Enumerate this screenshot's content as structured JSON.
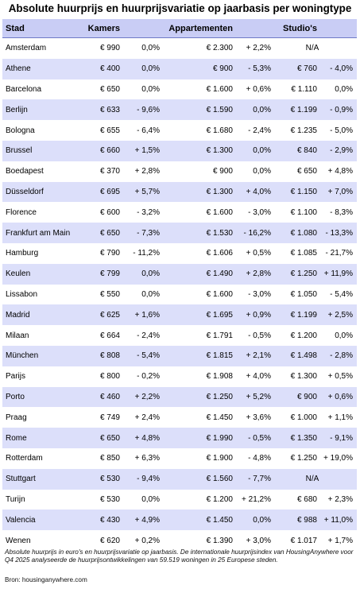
{
  "chart_data": {
    "type": "table",
    "title": "Absolute huurprijs en huurprijsvariatie op jaarbasis per woningtype",
    "columns": [
      "Stad",
      "Kamers",
      "Appartementen",
      "Studio's"
    ],
    "rows": [
      {
        "city": "Amsterdam",
        "kamers_prijs": "€ 990",
        "kamers_var": "0,0%",
        "app_prijs": "€ 2.300",
        "app_var": "+ 2,2%",
        "studio_prijs": "N/A",
        "studio_var": ""
      },
      {
        "city": "Athene",
        "kamers_prijs": "€ 400",
        "kamers_var": "0,0%",
        "app_prijs": "€ 900",
        "app_var": "- 5,3%",
        "studio_prijs": "€ 760",
        "studio_var": "- 4,0%"
      },
      {
        "city": "Barcelona",
        "kamers_prijs": "€ 650",
        "kamers_var": "0,0%",
        "app_prijs": "€ 1.600",
        "app_var": "+ 0,6%",
        "studio_prijs": "€ 1.110",
        "studio_var": "0,0%"
      },
      {
        "city": "Berlijn",
        "kamers_prijs": "€ 633",
        "kamers_var": "- 9,6%",
        "app_prijs": "€ 1.590",
        "app_var": "0,0%",
        "studio_prijs": "€ 1.199",
        "studio_var": "- 0,9%"
      },
      {
        "city": "Bologna",
        "kamers_prijs": "€ 655",
        "kamers_var": "- 6,4%",
        "app_prijs": "€ 1.680",
        "app_var": "- 2,4%",
        "studio_prijs": "€ 1.235",
        "studio_var": "- 5,0%"
      },
      {
        "city": "Brussel",
        "kamers_prijs": "€ 660",
        "kamers_var": "+ 1,5%",
        "app_prijs": "€ 1.300",
        "app_var": "0,0%",
        "studio_prijs": "€ 840",
        "studio_var": "- 2,9%"
      },
      {
        "city": "Boedapest",
        "kamers_prijs": "€ 370",
        "kamers_var": "+ 2,8%",
        "app_prijs": "€ 900",
        "app_var": "0,0%",
        "studio_prijs": "€ 650",
        "studio_var": "+ 4,8%"
      },
      {
        "city": "Düsseldorf",
        "kamers_prijs": "€ 695",
        "kamers_var": "+ 5,7%",
        "app_prijs": "€ 1.300",
        "app_var": "+ 4,0%",
        "studio_prijs": "€ 1.150",
        "studio_var": "+ 7,0%"
      },
      {
        "city": "Florence",
        "kamers_prijs": "€ 600",
        "kamers_var": "- 3,2%",
        "app_prijs": "€ 1.600",
        "app_var": "- 3,0%",
        "studio_prijs": "€ 1.100",
        "studio_var": "- 8,3%"
      },
      {
        "city": "Frankfurt am Main",
        "kamers_prijs": "€ 650",
        "kamers_var": "- 7,3%",
        "app_prijs": "€ 1.530",
        "app_var": "- 16,2%",
        "studio_prijs": "€ 1.080",
        "studio_var": "- 13,3%"
      },
      {
        "city": "Hamburg",
        "kamers_prijs": "€ 790",
        "kamers_var": "- 11,2%",
        "app_prijs": "€ 1.606",
        "app_var": "+ 0,5%",
        "studio_prijs": "€ 1.085",
        "studio_var": "- 21,7%"
      },
      {
        "city": "Keulen",
        "kamers_prijs": "€ 799",
        "kamers_var": "0,0%",
        "app_prijs": "€ 1.490",
        "app_var": "+ 2,8%",
        "studio_prijs": "€ 1.250",
        "studio_var": "+ 11,9%"
      },
      {
        "city": "Lissabon",
        "kamers_prijs": "€ 550",
        "kamers_var": "0,0%",
        "app_prijs": "€ 1.600",
        "app_var": "- 3,0%",
        "studio_prijs": "€ 1.050",
        "studio_var": "- 5,4%"
      },
      {
        "city": "Madrid",
        "kamers_prijs": "€ 625",
        "kamers_var": "+ 1,6%",
        "app_prijs": "€ 1.695",
        "app_var": "+ 0,9%",
        "studio_prijs": "€ 1.199",
        "studio_var": "+ 2,5%"
      },
      {
        "city": "Milaan",
        "kamers_prijs": "€ 664",
        "kamers_var": "- 2,4%",
        "app_prijs": "€ 1.791",
        "app_var": "- 0,5%",
        "studio_prijs": "€ 1.200",
        "studio_var": "0,0%"
      },
      {
        "city": "München",
        "kamers_prijs": "€ 808",
        "kamers_var": "- 5,4%",
        "app_prijs": "€ 1.815",
        "app_var": "+ 2,1%",
        "studio_prijs": "€ 1.498",
        "studio_var": "- 2,8%"
      },
      {
        "city": "Parijs",
        "kamers_prijs": "€ 800",
        "kamers_var": "- 0,2%",
        "app_prijs": "€ 1.908",
        "app_var": "+ 4,0%",
        "studio_prijs": "€ 1.300",
        "studio_var": "+ 0,5%"
      },
      {
        "city": "Porto",
        "kamers_prijs": "€ 460",
        "kamers_var": "+ 2,2%",
        "app_prijs": "€ 1.250",
        "app_var": "+ 5,2%",
        "studio_prijs": "€ 900",
        "studio_var": "+ 0,6%"
      },
      {
        "city": "Praag",
        "kamers_prijs": "€ 749",
        "kamers_var": "+ 2,4%",
        "app_prijs": "€ 1.450",
        "app_var": "+ 3,6%",
        "studio_prijs": "€ 1.000",
        "studio_var": "+ 1,1%"
      },
      {
        "city": "Rome",
        "kamers_prijs": "€ 650",
        "kamers_var": "+ 4,8%",
        "app_prijs": "€ 1.990",
        "app_var": "- 0,5%",
        "studio_prijs": "€ 1.350",
        "studio_var": "- 9,1%"
      },
      {
        "city": "Rotterdam",
        "kamers_prijs": "€ 850",
        "kamers_var": "+ 6,3%",
        "app_prijs": "€ 1.900",
        "app_var": "- 4,8%",
        "studio_prijs": "€ 1.250",
        "studio_var": "+ 19,0%"
      },
      {
        "city": "Stuttgart",
        "kamers_prijs": "€ 530",
        "kamers_var": "- 9,4%",
        "app_prijs": "€ 1.560",
        "app_var": "- 7,7%",
        "studio_prijs": "N/A",
        "studio_var": ""
      },
      {
        "city": "Turijn",
        "kamers_prijs": "€ 530",
        "kamers_var": "0,0%",
        "app_prijs": "€ 1.200",
        "app_var": "+ 21,2%",
        "studio_prijs": "€ 680",
        "studio_var": "+ 2,3%"
      },
      {
        "city": "Valencia",
        "kamers_prijs": "€ 430",
        "kamers_var": "+ 4,9%",
        "app_prijs": "€ 1.450",
        "app_var": "0,0%",
        "studio_prijs": "€ 988",
        "studio_var": "+ 11,0%"
      },
      {
        "city": "Wenen",
        "kamers_prijs": "€ 620",
        "kamers_var": "+ 0,2%",
        "app_prijs": "€ 1.390",
        "app_var": "+ 3,0%",
        "studio_prijs": "€ 1.017",
        "studio_var": "+ 1,7%"
      }
    ],
    "footnote": "Absolute huurprijs in euro's en huurprijsvariatie op jaarbasis. De internationale huurprijsindex van HousingAnywhere voor Q4 2025 analyseerde de huurprijsontwikkelingen van 59.519 woningen in 25 Europese steden.",
    "source": "Bron: housinganywhere.com",
    "colors": {
      "header": "#c9cdf5",
      "stripe": "#dcdffa",
      "header_rule": "#6f7ac6"
    }
  }
}
